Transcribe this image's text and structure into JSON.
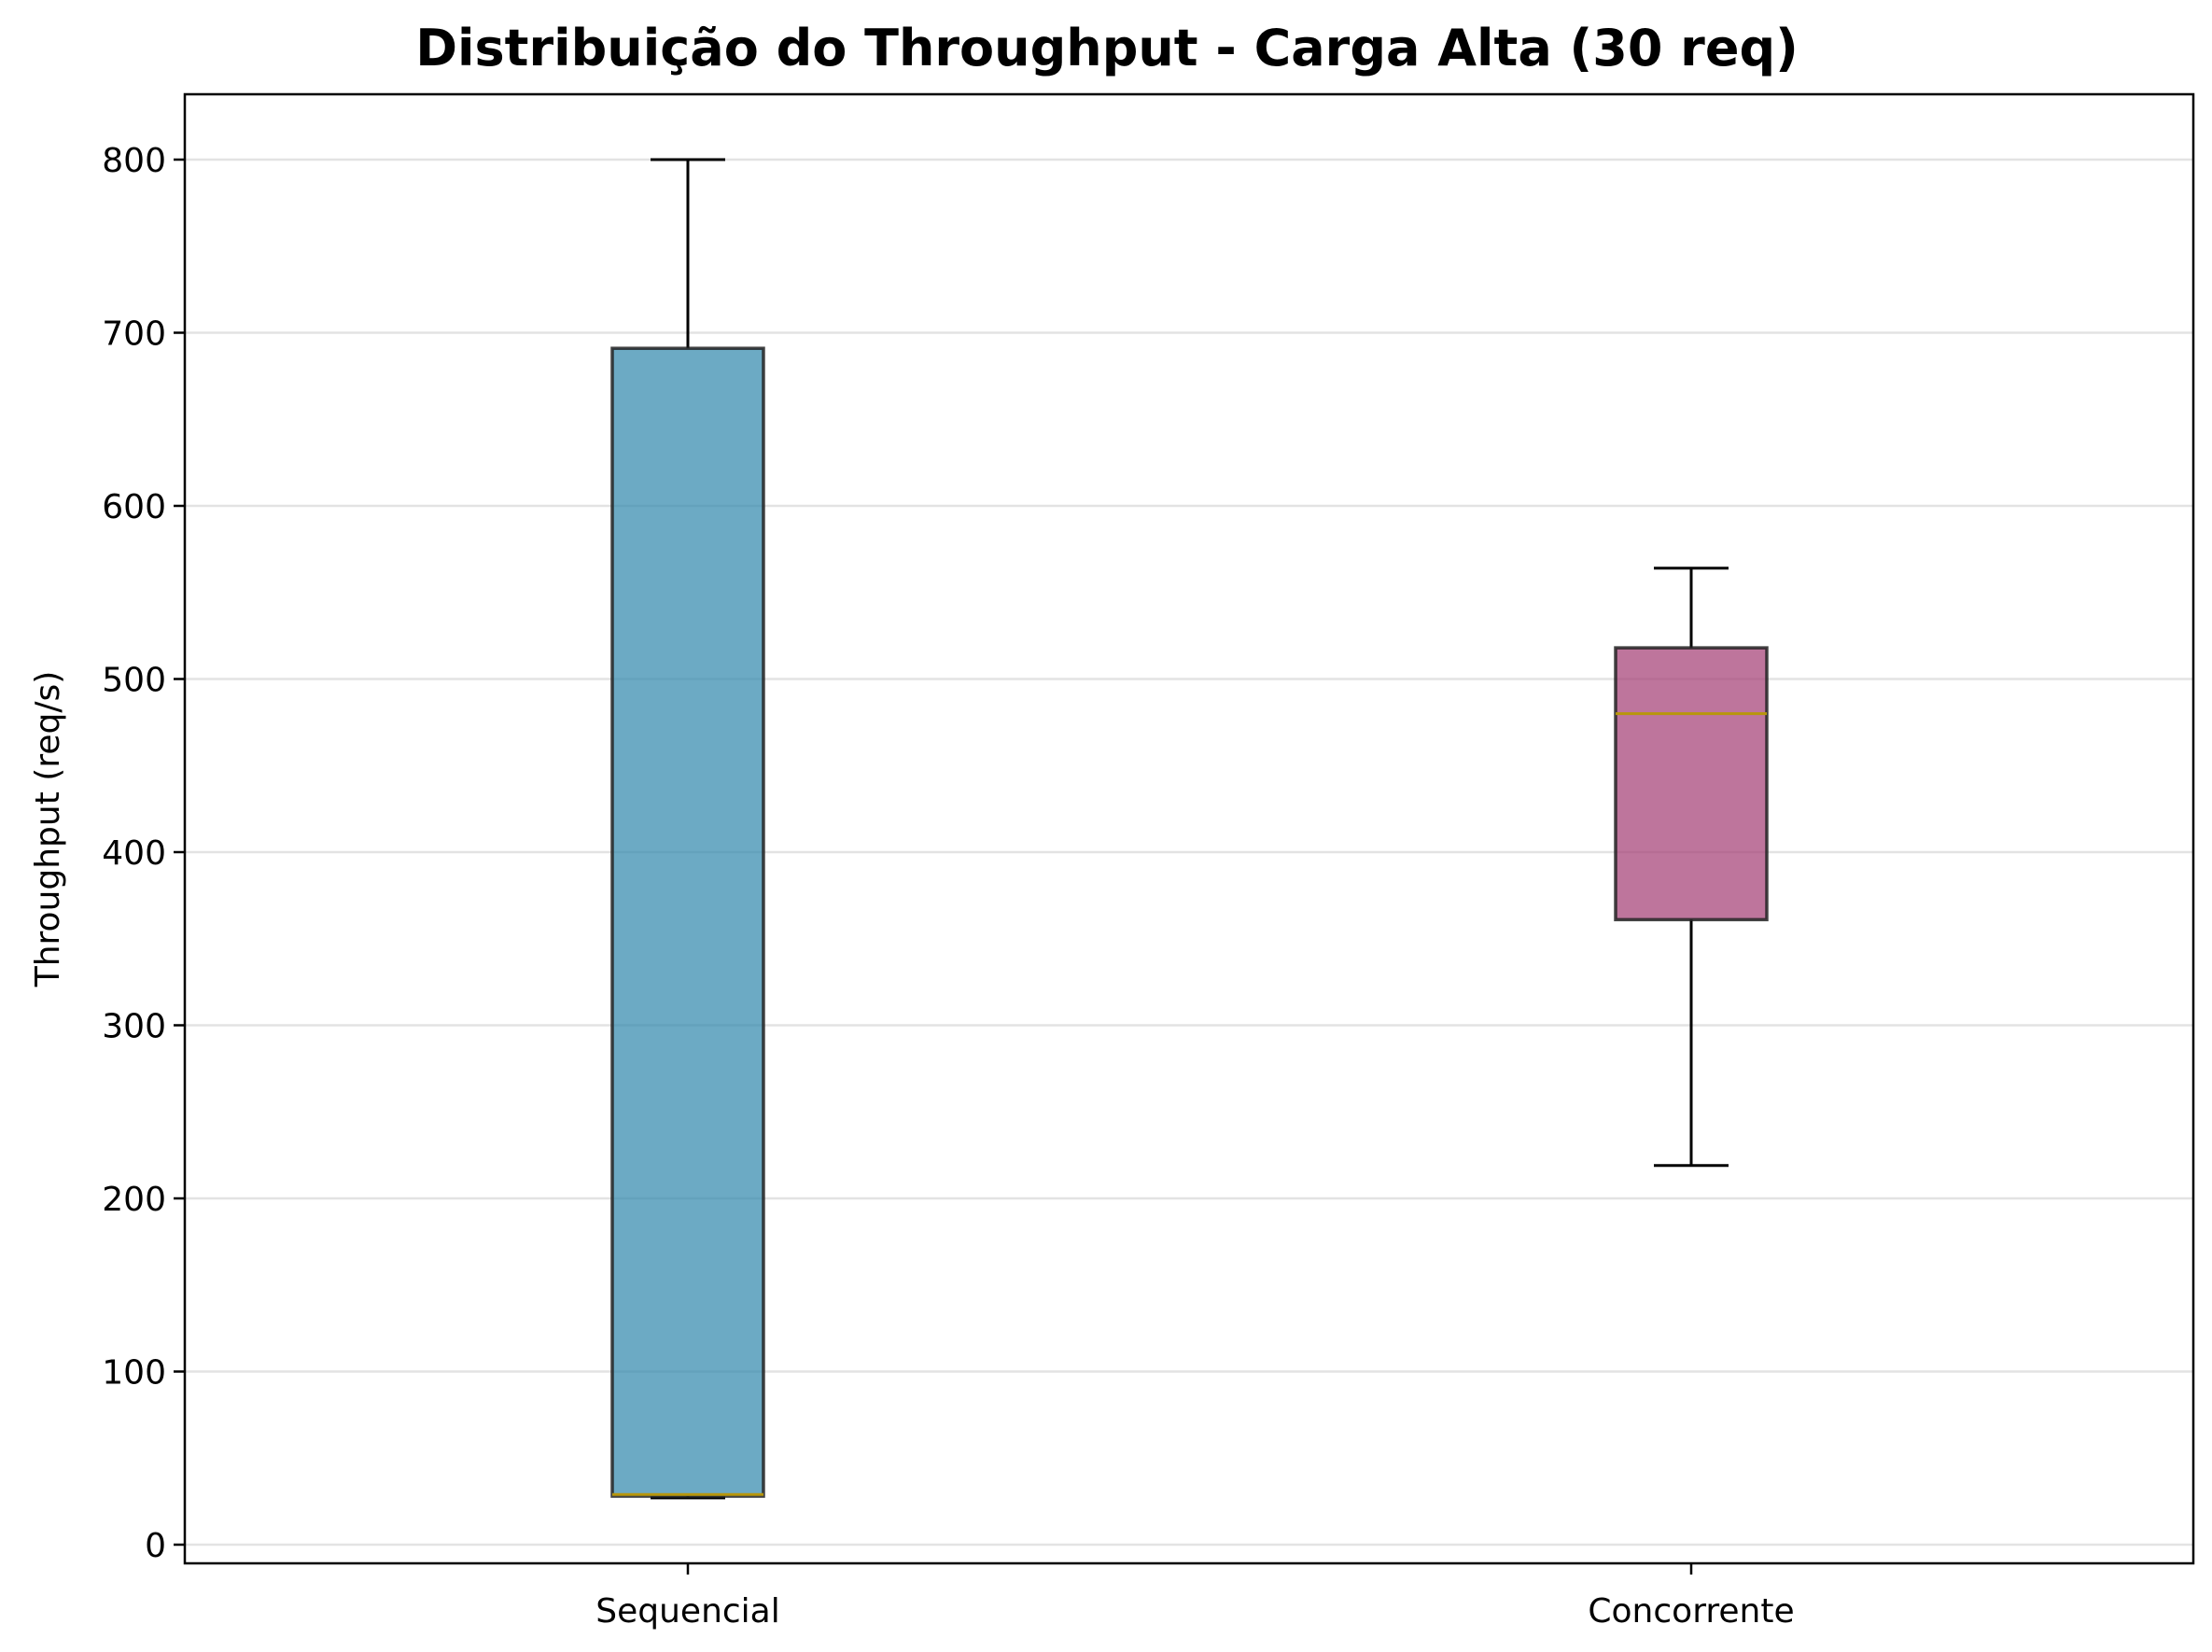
{
  "chart_data": {
    "type": "boxplot",
    "title": "Distribuição do Throughput - Carga Alta (30 req)",
    "xlabel": "",
    "ylabel": "Throughput (req/s)",
    "ylim": [
      -10,
      838
    ],
    "yticks": [
      0,
      100,
      200,
      300,
      400,
      500,
      600,
      700,
      800
    ],
    "grid": "horizontal",
    "categories": [
      "Sequencial",
      "Concorrente"
    ],
    "boxes": [
      {
        "label": "Sequencial",
        "whisker_low": 27,
        "q1": 28,
        "median": 29,
        "q3": 691,
        "whisker_high": 800,
        "color": "#2E86AB"
      },
      {
        "label": "Concorrente",
        "whisker_low": 219,
        "q1": 361,
        "median": 480,
        "q3": 518,
        "whisker_high": 564,
        "color": "#A23B72"
      }
    ],
    "median_color": "#B8960C"
  }
}
